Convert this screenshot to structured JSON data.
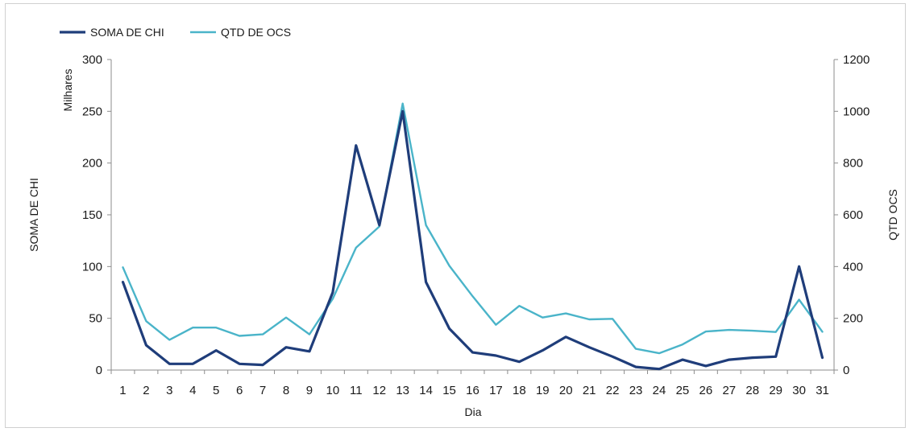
{
  "chart_data": {
    "type": "line",
    "categories": [
      "1",
      "2",
      "3",
      "4",
      "5",
      "6",
      "7",
      "8",
      "9",
      "10",
      "11",
      "12",
      "13",
      "14",
      "15",
      "16",
      "17",
      "18",
      "19",
      "20",
      "21",
      "22",
      "23",
      "24",
      "25",
      "26",
      "27",
      "28",
      "29",
      "30",
      "31"
    ],
    "xlabel": "Dia",
    "ylabel": "SOMA DE CHI",
    "ylabel_units": "Milhares",
    "y2label": "QTD OCS",
    "ylim": [
      0,
      300
    ],
    "yticks": [
      0,
      50,
      100,
      150,
      200,
      250,
      300
    ],
    "y2lim": [
      0,
      1200
    ],
    "y2ticks": [
      0,
      200,
      400,
      600,
      800,
      1000,
      1200
    ],
    "grid": false,
    "legend_position": "top-left",
    "series": [
      {
        "name": "SOMA DE CHI",
        "axis": "left",
        "color": "#1f3d7a",
        "values": [
          85,
          24,
          6,
          6,
          19,
          6,
          5,
          22,
          18,
          75,
          217,
          140,
          250,
          85,
          40,
          17,
          14,
          8,
          19,
          32,
          22,
          13,
          3,
          1,
          10,
          4,
          10,
          12,
          13,
          100,
          12
        ]
      },
      {
        "name": "QTD DE OCS",
        "axis": "right",
        "color": "#4ab4c9",
        "values": [
          397,
          189,
          117,
          164,
          164,
          132,
          138,
          203,
          138,
          275,
          473,
          555,
          1030,
          560,
          403,
          285,
          175,
          248,
          203,
          219,
          196,
          198,
          82,
          65,
          99,
          149,
          155,
          152,
          147,
          272,
          148
        ]
      }
    ]
  }
}
